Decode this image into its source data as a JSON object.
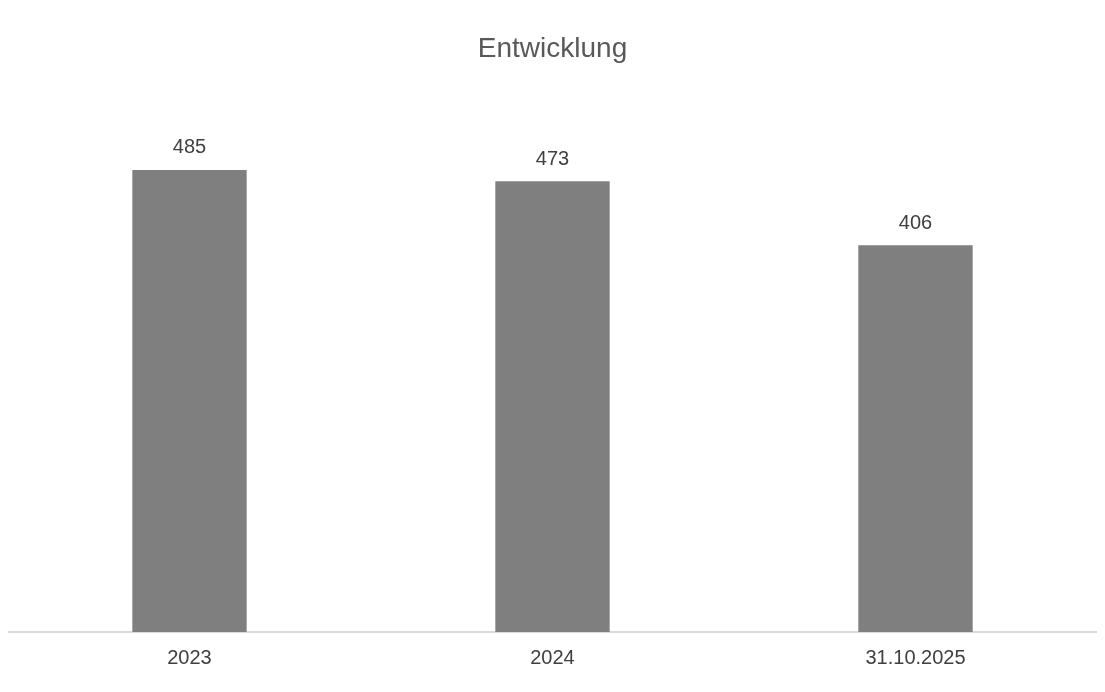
{
  "chart_data": {
    "type": "bar",
    "title": "Entwicklung",
    "categories": [
      "2023",
      "2024",
      "31.10.2025"
    ],
    "values": [
      485,
      473,
      406
    ],
    "color": "#7f7f7f",
    "data_labels": true,
    "legend": false,
    "grid": false
  }
}
